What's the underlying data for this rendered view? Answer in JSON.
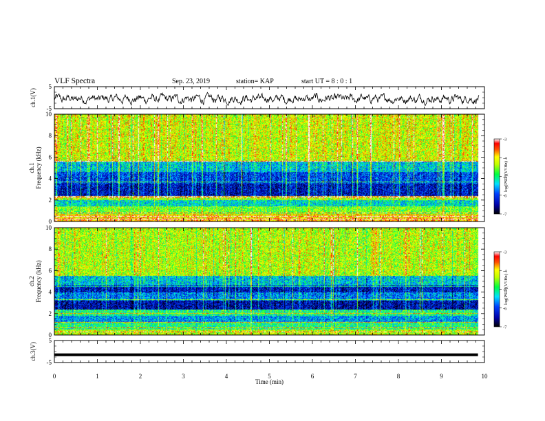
{
  "header": {
    "title": "VLF Spectra",
    "date": "Sep. 23, 2019",
    "station": "station= KAP",
    "start_ut": "start  UT  =   8  : 0  : 1"
  },
  "chart_data": [
    {
      "type": "line",
      "panel": "ch.1 waveform",
      "ylabel": "ch.1(V)",
      "ylim": [
        -5,
        5
      ],
      "yticks": [
        "5",
        "-5"
      ],
      "xlim": [
        0,
        10
      ],
      "color": "#000000",
      "description_values": {
        "mean": -0.5,
        "amplitude_range": [
          -3,
          2
        ]
      }
    },
    {
      "type": "heatmap",
      "panel": "ch.1 spectrogram",
      "ylabel": "ch.1",
      "ylabel2": "Frequency  (kHz)",
      "ylim": [
        0,
        10
      ],
      "yticks": [
        "0",
        "2",
        "4",
        "6",
        "8",
        "10"
      ],
      "xlim": [
        0,
        10
      ],
      "colorbar": {
        "label": "log(PSD)(V²/Hz)",
        "range": [
          -7,
          -3
        ],
        "ticks": [
          "-3",
          "-4",
          "-5",
          "-6",
          "-7"
        ]
      },
      "data_end_min": 9.85,
      "band_levels": [
        {
          "f": [
            0.0,
            0.3
          ],
          "level": -3.8
        },
        {
          "f": [
            0.3,
            0.7
          ],
          "level": -4.0
        },
        {
          "f": [
            0.7,
            1.4
          ],
          "level": -4.6
        },
        {
          "f": [
            1.4,
            2.0
          ],
          "level": -5.3
        },
        {
          "f": [
            2.0,
            2.4
          ],
          "level": -4.4
        },
        {
          "f": [
            2.4,
            3.5
          ],
          "level": -6.3
        },
        {
          "f": [
            3.5,
            4.6
          ],
          "level": -6.0
        },
        {
          "f": [
            4.6,
            5.6
          ],
          "level": -5.4
        },
        {
          "f": [
            5.6,
            10.0
          ],
          "level": -4.2
        }
      ],
      "constant_lines_khz": [
        0.2,
        0.5,
        0.8,
        2.2,
        2.35,
        3.7,
        5.6
      ]
    },
    {
      "type": "heatmap",
      "panel": "ch.2 spectrogram",
      "ylabel": "ch.2",
      "ylabel2": "Frequency  (kHz)",
      "ylim": [
        0,
        10
      ],
      "yticks": [
        "0",
        "2",
        "4",
        "6",
        "8",
        "10"
      ],
      "xlim": [
        0,
        10
      ],
      "colorbar": {
        "label": "log(PSD)(V²/Hz)",
        "range": [
          -7,
          -3
        ],
        "ticks": [
          "-3",
          "-4",
          "-5",
          "-6",
          "-7"
        ]
      },
      "data_end_min": 9.85,
      "band_levels": [
        {
          "f": [
            0.0,
            0.5
          ],
          "level": -4.3
        },
        {
          "f": [
            0.5,
            1.2
          ],
          "level": -5.0
        },
        {
          "f": [
            1.2,
            1.8
          ],
          "level": -5.6
        },
        {
          "f": [
            1.8,
            2.4
          ],
          "level": -5.0
        },
        {
          "f": [
            2.4,
            3.2
          ],
          "level": -6.4
        },
        {
          "f": [
            3.2,
            4.0
          ],
          "level": -5.7
        },
        {
          "f": [
            4.0,
            4.6
          ],
          "level": -6.3
        },
        {
          "f": [
            4.6,
            5.5
          ],
          "level": -5.4
        },
        {
          "f": [
            5.5,
            10.0
          ],
          "level": -4.3
        }
      ],
      "constant_lines_khz": [
        0.3,
        0.7,
        1.2,
        2.0,
        3.3,
        4.5
      ]
    },
    {
      "type": "line",
      "panel": "ch.3 waveform",
      "ylabel": "ch.3(V)",
      "ylim": [
        -5,
        5
      ],
      "yticks": [
        "5",
        "-5"
      ],
      "xlim": [
        0,
        10
      ],
      "xlabel": "Time  (min)",
      "xticks": [
        "0",
        "1",
        "2",
        "3",
        "4",
        "5",
        "6",
        "7",
        "8",
        "9",
        "10"
      ],
      "constant_value": -1.5,
      "data_end_min": 9.85,
      "color": "#000000"
    }
  ]
}
